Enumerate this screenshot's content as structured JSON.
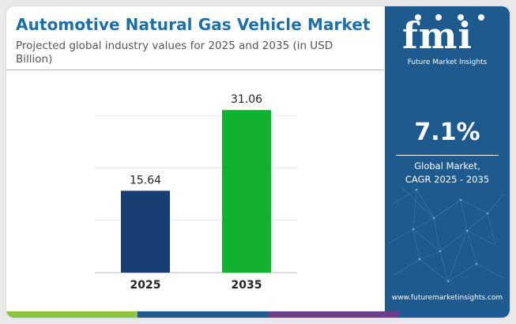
{
  "header": {
    "title": "Automotive Natural Gas Vehicle Market",
    "subtitle": "Projected global industry values for 2025 and 2035 (in USD Billion)"
  },
  "chart_data": {
    "type": "bar",
    "categories": [
      "2025",
      "2035"
    ],
    "values": [
      15.64,
      31.06
    ],
    "value_labels": [
      "15.64",
      "31.06"
    ],
    "bar_colors": [
      "#173e72",
      "#12b12f"
    ],
    "ylim": [
      0,
      40
    ],
    "grid": true,
    "xlabel": "",
    "ylabel": ""
  },
  "sidebar": {
    "logo_text": "fmi",
    "logo_tagline": "Future Market Insights",
    "cagr_value": "7.1%",
    "cagr_label_line1": "Global Market,",
    "cagr_label_line2": "CAGR 2025 - 2035",
    "website": "www.futuremarketinsights.com",
    "background_color": "#1f5a8f"
  },
  "footer": {
    "colors": [
      "#8cc43f",
      "#1b5c96",
      "#6b3d8f",
      "#1b5c96"
    ]
  },
  "icons": [
    "logo-icon"
  ]
}
